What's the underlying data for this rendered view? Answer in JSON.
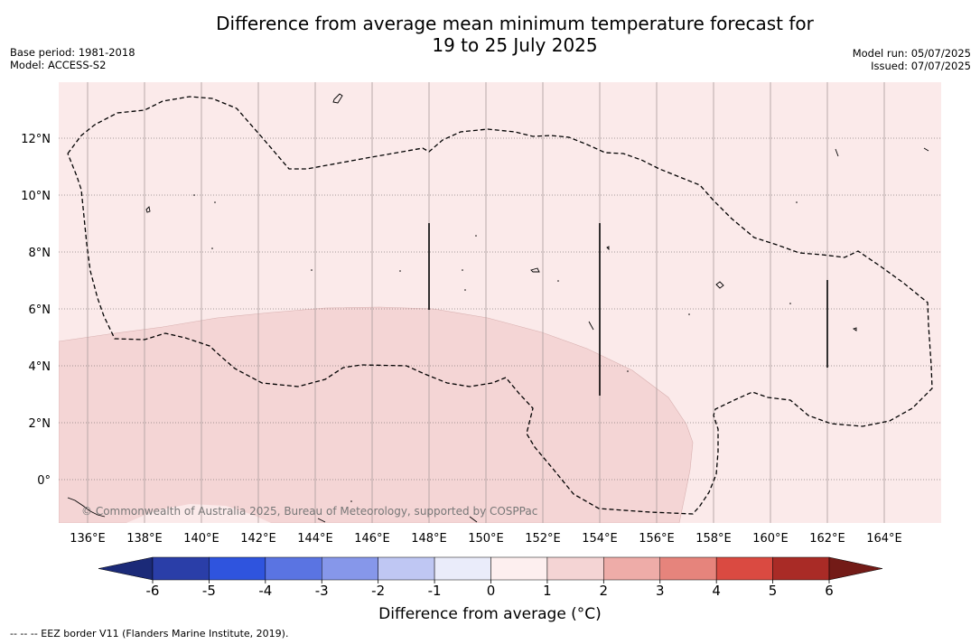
{
  "title": {
    "line1": "Difference from average mean minimum temperature forecast for",
    "line2": "19 to 25 July 2025"
  },
  "meta_left": {
    "base_period": "Base period: 1981-2018",
    "model": "Model: ACCESS-S2"
  },
  "meta_right": {
    "model_run": "Model run: 05/07/2025",
    "issued": "Issued: 07/07/2025"
  },
  "map": {
    "lon_labels": [
      "136°E",
      "138°E",
      "140°E",
      "142°E",
      "144°E",
      "146°E",
      "148°E",
      "150°E",
      "152°E",
      "154°E",
      "156°E",
      "158°E",
      "160°E",
      "162°E",
      "164°E"
    ],
    "lon_values": [
      136,
      138,
      140,
      142,
      144,
      146,
      148,
      150,
      152,
      154,
      156,
      158,
      160,
      162,
      164
    ],
    "lat_labels": [
      "12°N",
      "10°N",
      "8°N",
      "6°N",
      "4°N",
      "2°N",
      "0°"
    ],
    "lat_values": [
      12,
      10,
      8,
      6,
      4,
      2,
      0
    ],
    "background_color": "#fbeaea",
    "anomaly_region_color": "#f4d5d5",
    "copyright": "© Commonwealth of Australia 2025, Bureau of Meteorology, supported by COSPPac"
  },
  "colorbar": {
    "tick_labels": [
      "-6",
      "-5",
      "-4",
      "-3",
      "-2",
      "-1",
      "0",
      "1",
      "2",
      "3",
      "4",
      "5",
      "6"
    ],
    "colors": [
      "#2a3ea8",
      "#2f54de",
      "#5a74e2",
      "#8697ea",
      "#bfc7f3",
      "#eaecfa",
      "#fdefef",
      "#f4d4d4",
      "#eeaca8",
      "#e6847c",
      "#da4a41",
      "#a92b26"
    ],
    "under_color": "#1b2a78",
    "over_color": "#731b17",
    "label": "Difference from average (°C)"
  },
  "footnote": "--  --  -- EEZ border V11 (Flanders Marine Institute, 2019)."
}
